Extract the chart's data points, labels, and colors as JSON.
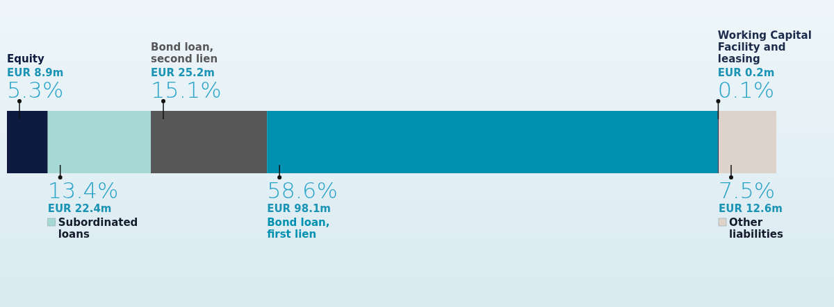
{
  "chart_data": {
    "type": "bar",
    "orientation": "horizontal",
    "stacked": true,
    "categories": [
      null
    ],
    "legend": "bottom",
    "series": [
      {
        "name": "Equity",
        "color": "#0b1a3e",
        "values": [
          5.3
        ],
        "value_labels": [
          "5.3%"
        ]
      },
      {
        "name": "Subordinated loans",
        "color": "#a6d9d6",
        "values": [
          13.4
        ],
        "value_labels": [
          "13.4%"
        ]
      },
      {
        "name": "Bond loan, second lien",
        "color": "#575757",
        "values": [
          15.1
        ],
        "value_labels": [
          "15.1%"
        ]
      },
      {
        "name": "Bond loan, first lien",
        "color": "#0091b0",
        "values": [
          58.6
        ],
        "value_labels": [
          "58.6%"
        ]
      },
      {
        "name": "Working Capital Facility and leasing",
        "color": "#1c2b4a",
        "values": [
          0.1
        ],
        "value_labels": [
          "0.1%"
        ]
      },
      {
        "name": "Other liabilities",
        "color": "#ddd3cb",
        "values": [
          7.5
        ],
        "value_labels": [
          "7.5%"
        ]
      }
    ],
    "annotations": [
      "EUR 8.9m",
      "EUR 22.4m",
      "EUR 25.2m",
      "EUR 98.1m",
      "EUR 0.2m",
      "EUR 12.6m"
    ]
  }
}
